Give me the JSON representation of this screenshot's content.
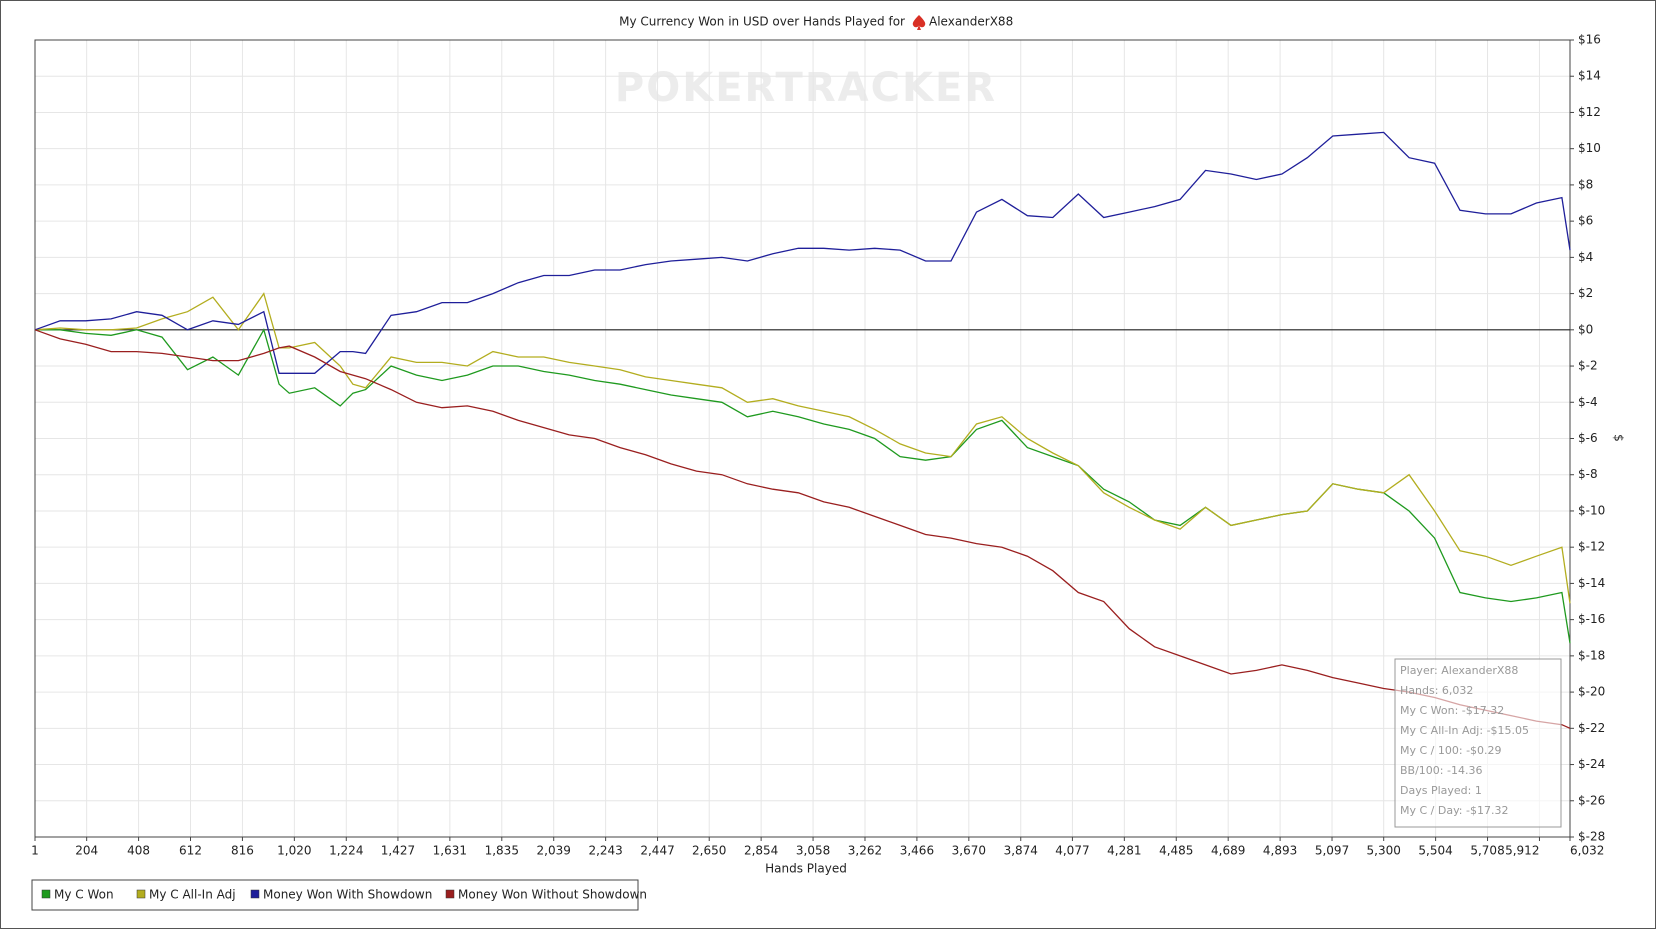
{
  "chart_data": {
    "type": "line",
    "title": "My Currency Won in USD over Hands Played for",
    "player": "AlexanderX88",
    "watermark": "POKERTRACKER",
    "x_label": "Hands Played",
    "y_label": "$",
    "grid": true,
    "x": [
      1,
      100,
      200,
      300,
      400,
      500,
      600,
      700,
      800,
      900,
      960,
      1000,
      1100,
      1200,
      1250,
      1300,
      1400,
      1500,
      1600,
      1700,
      1800,
      1900,
      2000,
      2100,
      2200,
      2300,
      2400,
      2500,
      2600,
      2700,
      2800,
      2900,
      3000,
      3100,
      3200,
      3300,
      3400,
      3500,
      3600,
      3700,
      3800,
      3900,
      4000,
      4100,
      4200,
      4300,
      4400,
      4500,
      4600,
      4700,
      4800,
      4900,
      5000,
      5100,
      5200,
      5300,
      5400,
      5500,
      5600,
      5700,
      5800,
      5900,
      6000,
      6032
    ],
    "series": [
      {
        "name": "My C Won",
        "color": "#1f9a1f",
        "values": [
          0,
          0,
          -0.2,
          -0.3,
          0,
          -0.4,
          -2.2,
          -1.5,
          -2.5,
          0,
          -3.0,
          -3.5,
          -3.2,
          -4.2,
          -3.5,
          -3.3,
          -2.0,
          -2.5,
          -2.8,
          -2.5,
          -2.0,
          -2.0,
          -2.3,
          -2.5,
          -2.8,
          -3.0,
          -3.3,
          -3.6,
          -3.8,
          -4.0,
          -4.8,
          -4.5,
          -4.8,
          -5.2,
          -5.5,
          -6.0,
          -7.0,
          -7.2,
          -7.0,
          -5.5,
          -5.0,
          -6.5,
          -7.0,
          -7.5,
          -8.8,
          -9.5,
          -10.5,
          -10.8,
          -9.8,
          -10.8,
          -10.5,
          -10.2,
          -10.0,
          -8.5,
          -8.8,
          -9.0,
          -10.0,
          -11.5,
          -14.5,
          -14.8,
          -15.0,
          -14.8,
          -14.5,
          -17.3
        ]
      },
      {
        "name": "My C All-In Adj",
        "color": "#b3ad1f",
        "values": [
          0,
          0.1,
          0,
          0,
          0.1,
          0.6,
          1.0,
          1.8,
          0,
          2.0,
          -1.0,
          -1.0,
          -0.7,
          -2.0,
          -3.0,
          -3.2,
          -1.5,
          -1.8,
          -1.8,
          -2.0,
          -1.2,
          -1.5,
          -1.5,
          -1.8,
          -2.0,
          -2.2,
          -2.6,
          -2.8,
          -3.0,
          -3.2,
          -4.0,
          -3.8,
          -4.2,
          -4.5,
          -4.8,
          -5.5,
          -6.3,
          -6.8,
          -7.0,
          -5.2,
          -4.8,
          -6.0,
          -6.8,
          -7.5,
          -9.0,
          -9.8,
          -10.5,
          -11.0,
          -9.8,
          -10.8,
          -10.5,
          -10.2,
          -10.0,
          -8.5,
          -8.8,
          -9.0,
          -8.0,
          -10.0,
          -12.2,
          -12.5,
          -13.0,
          -12.5,
          -12.0,
          -15.1
        ]
      },
      {
        "name": "Money Won With Showdown",
        "color": "#1f1f9a",
        "values": [
          0,
          0.5,
          0.5,
          0.6,
          1.0,
          0.8,
          0.0,
          0.5,
          0.3,
          1.0,
          -2.4,
          -2.4,
          -2.4,
          -1.2,
          -1.2,
          -1.3,
          0.8,
          1.0,
          1.5,
          1.5,
          2.0,
          2.6,
          3.0,
          3.0,
          3.3,
          3.3,
          3.6,
          3.8,
          3.9,
          4.0,
          3.8,
          4.2,
          4.5,
          4.5,
          4.4,
          4.5,
          4.4,
          3.8,
          3.8,
          6.5,
          7.2,
          6.3,
          6.2,
          7.5,
          6.2,
          6.5,
          6.8,
          7.2,
          8.8,
          8.6,
          8.3,
          8.6,
          9.5,
          10.7,
          10.8,
          10.9,
          9.5,
          9.2,
          6.6,
          6.4,
          6.4,
          7.0,
          7.3,
          4.4
        ]
      },
      {
        "name": "Money Won Without Showdown",
        "color": "#9a1f1f",
        "values": [
          0,
          -0.5,
          -0.8,
          -1.2,
          -1.2,
          -1.3,
          -1.5,
          -1.7,
          -1.7,
          -1.3,
          -1.0,
          -0.9,
          -1.5,
          -2.3,
          -2.5,
          -2.7,
          -3.3,
          -4.0,
          -4.3,
          -4.2,
          -4.5,
          -5.0,
          -5.4,
          -5.8,
          -6.0,
          -6.5,
          -6.9,
          -7.4,
          -7.8,
          -8.0,
          -8.5,
          -8.8,
          -9.0,
          -9.5,
          -9.8,
          -10.3,
          -10.8,
          -11.3,
          -11.5,
          -11.8,
          -12.0,
          -12.5,
          -13.3,
          -14.5,
          -15.0,
          -16.5,
          -17.5,
          -18.0,
          -18.5,
          -19.0,
          -18.8,
          -18.5,
          -18.8,
          -19.2,
          -19.5,
          -19.8,
          -20.0,
          -20.3,
          -20.7,
          -21.0,
          -21.3,
          -21.6,
          -21.8,
          -22.0
        ]
      }
    ],
    "xlim": [
      1,
      6032
    ],
    "xticks": [
      1,
      204,
      408,
      612,
      816,
      {
        "value": 1020,
        "label": "1,020"
      },
      {
        "value": 1224,
        "label": "1,224"
      },
      {
        "value": 1427,
        "label": "1,427"
      },
      {
        "value": 1631,
        "label": "1,631"
      },
      {
        "value": 1835,
        "label": "1,835"
      },
      {
        "value": 2039,
        "label": "2,039"
      },
      {
        "value": 2243,
        "label": "2,243"
      },
      {
        "value": 2447,
        "label": "2,447"
      },
      {
        "value": 2650,
        "label": "2,650"
      },
      {
        "value": 2854,
        "label": "2,854"
      },
      {
        "value": 3058,
        "label": "3,058"
      },
      {
        "value": 3262,
        "label": "3,262"
      },
      {
        "value": 3466,
        "label": "3,466"
      },
      {
        "value": 3670,
        "label": "3,670"
      },
      {
        "value": 3874,
        "label": "3,874"
      },
      {
        "value": 4077,
        "label": "4,077"
      },
      {
        "value": 4281,
        "label": "4,281"
      },
      {
        "value": 4485,
        "label": "4,485"
      },
      {
        "value": 4689,
        "label": "4,689"
      },
      {
        "value": 4893,
        "label": "4,893"
      },
      {
        "value": 5097,
        "label": "5,097"
      },
      {
        "value": 5300,
        "label": "5,300"
      },
      {
        "value": 5504,
        "label": "5,504"
      },
      {
        "value": 5708,
        "label": "5,708"
      },
      {
        "value": 5912,
        "label": "5,912"
      },
      {
        "value": 6032,
        "label": "6,032"
      }
    ],
    "ylim": [
      -28,
      16
    ],
    "yticks": [
      {
        "value": 16,
        "label": "$16"
      },
      {
        "value": 14,
        "label": "$14"
      },
      {
        "value": 12,
        "label": "$12"
      },
      {
        "value": 10,
        "label": "$10"
      },
      {
        "value": 8,
        "label": "$8"
      },
      {
        "value": 6,
        "label": "$6"
      },
      {
        "value": 4,
        "label": "$4"
      },
      {
        "value": 2,
        "label": "$2"
      },
      {
        "value": 0,
        "label": "$0"
      },
      {
        "value": -2,
        "label": "$-2"
      },
      {
        "value": -4,
        "label": "$-4"
      },
      {
        "value": -6,
        "label": "$-6"
      },
      {
        "value": -8,
        "label": "$-8"
      },
      {
        "value": -10,
        "label": "$-10"
      },
      {
        "value": -12,
        "label": "$-12"
      },
      {
        "value": -14,
        "label": "$-14"
      },
      {
        "value": -16,
        "label": "$-16"
      },
      {
        "value": -18,
        "label": "$-18"
      },
      {
        "value": -20,
        "label": "$-20"
      },
      {
        "value": -22,
        "label": "$-22"
      },
      {
        "value": -24,
        "label": "$-24"
      },
      {
        "value": -26,
        "label": "$-26"
      },
      {
        "value": -28,
        "label": "$-28"
      }
    ],
    "tooltip": [
      "Player: AlexanderX88",
      "Hands: 6,032",
      "My C Won: -$17.32",
      "My C All-In Adj: -$15.05",
      "My C / 100: -$0.29",
      "BB/100: -14.36",
      "Days Played: 1",
      "My C / Day: -$17.32"
    ]
  }
}
